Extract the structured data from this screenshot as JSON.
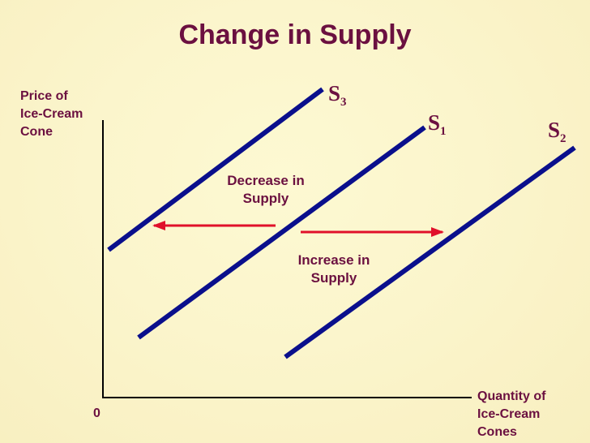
{
  "title": "Change in Supply",
  "y_axis_label": [
    "Price of",
    "Ice-Cream",
    "Cone"
  ],
  "x_axis_label": [
    "Quantity of",
    "Ice-Cream",
    "Cones"
  ],
  "origin_label": "0",
  "curves": [
    {
      "id": "S3",
      "letter": "S",
      "subscript": "3"
    },
    {
      "id": "S1",
      "letter": "S",
      "subscript": "1"
    },
    {
      "id": "S2",
      "letter": "S",
      "subscript": "2"
    }
  ],
  "annotations": {
    "decrease": [
      "Decrease in",
      "Supply"
    ],
    "increase": [
      "Increase in",
      "Supply"
    ]
  },
  "colors": {
    "title": "#6b1040",
    "text": "#6b1040",
    "curve": "#0a0f8c",
    "arrow": "#e0102a",
    "axis": "#000000"
  }
}
